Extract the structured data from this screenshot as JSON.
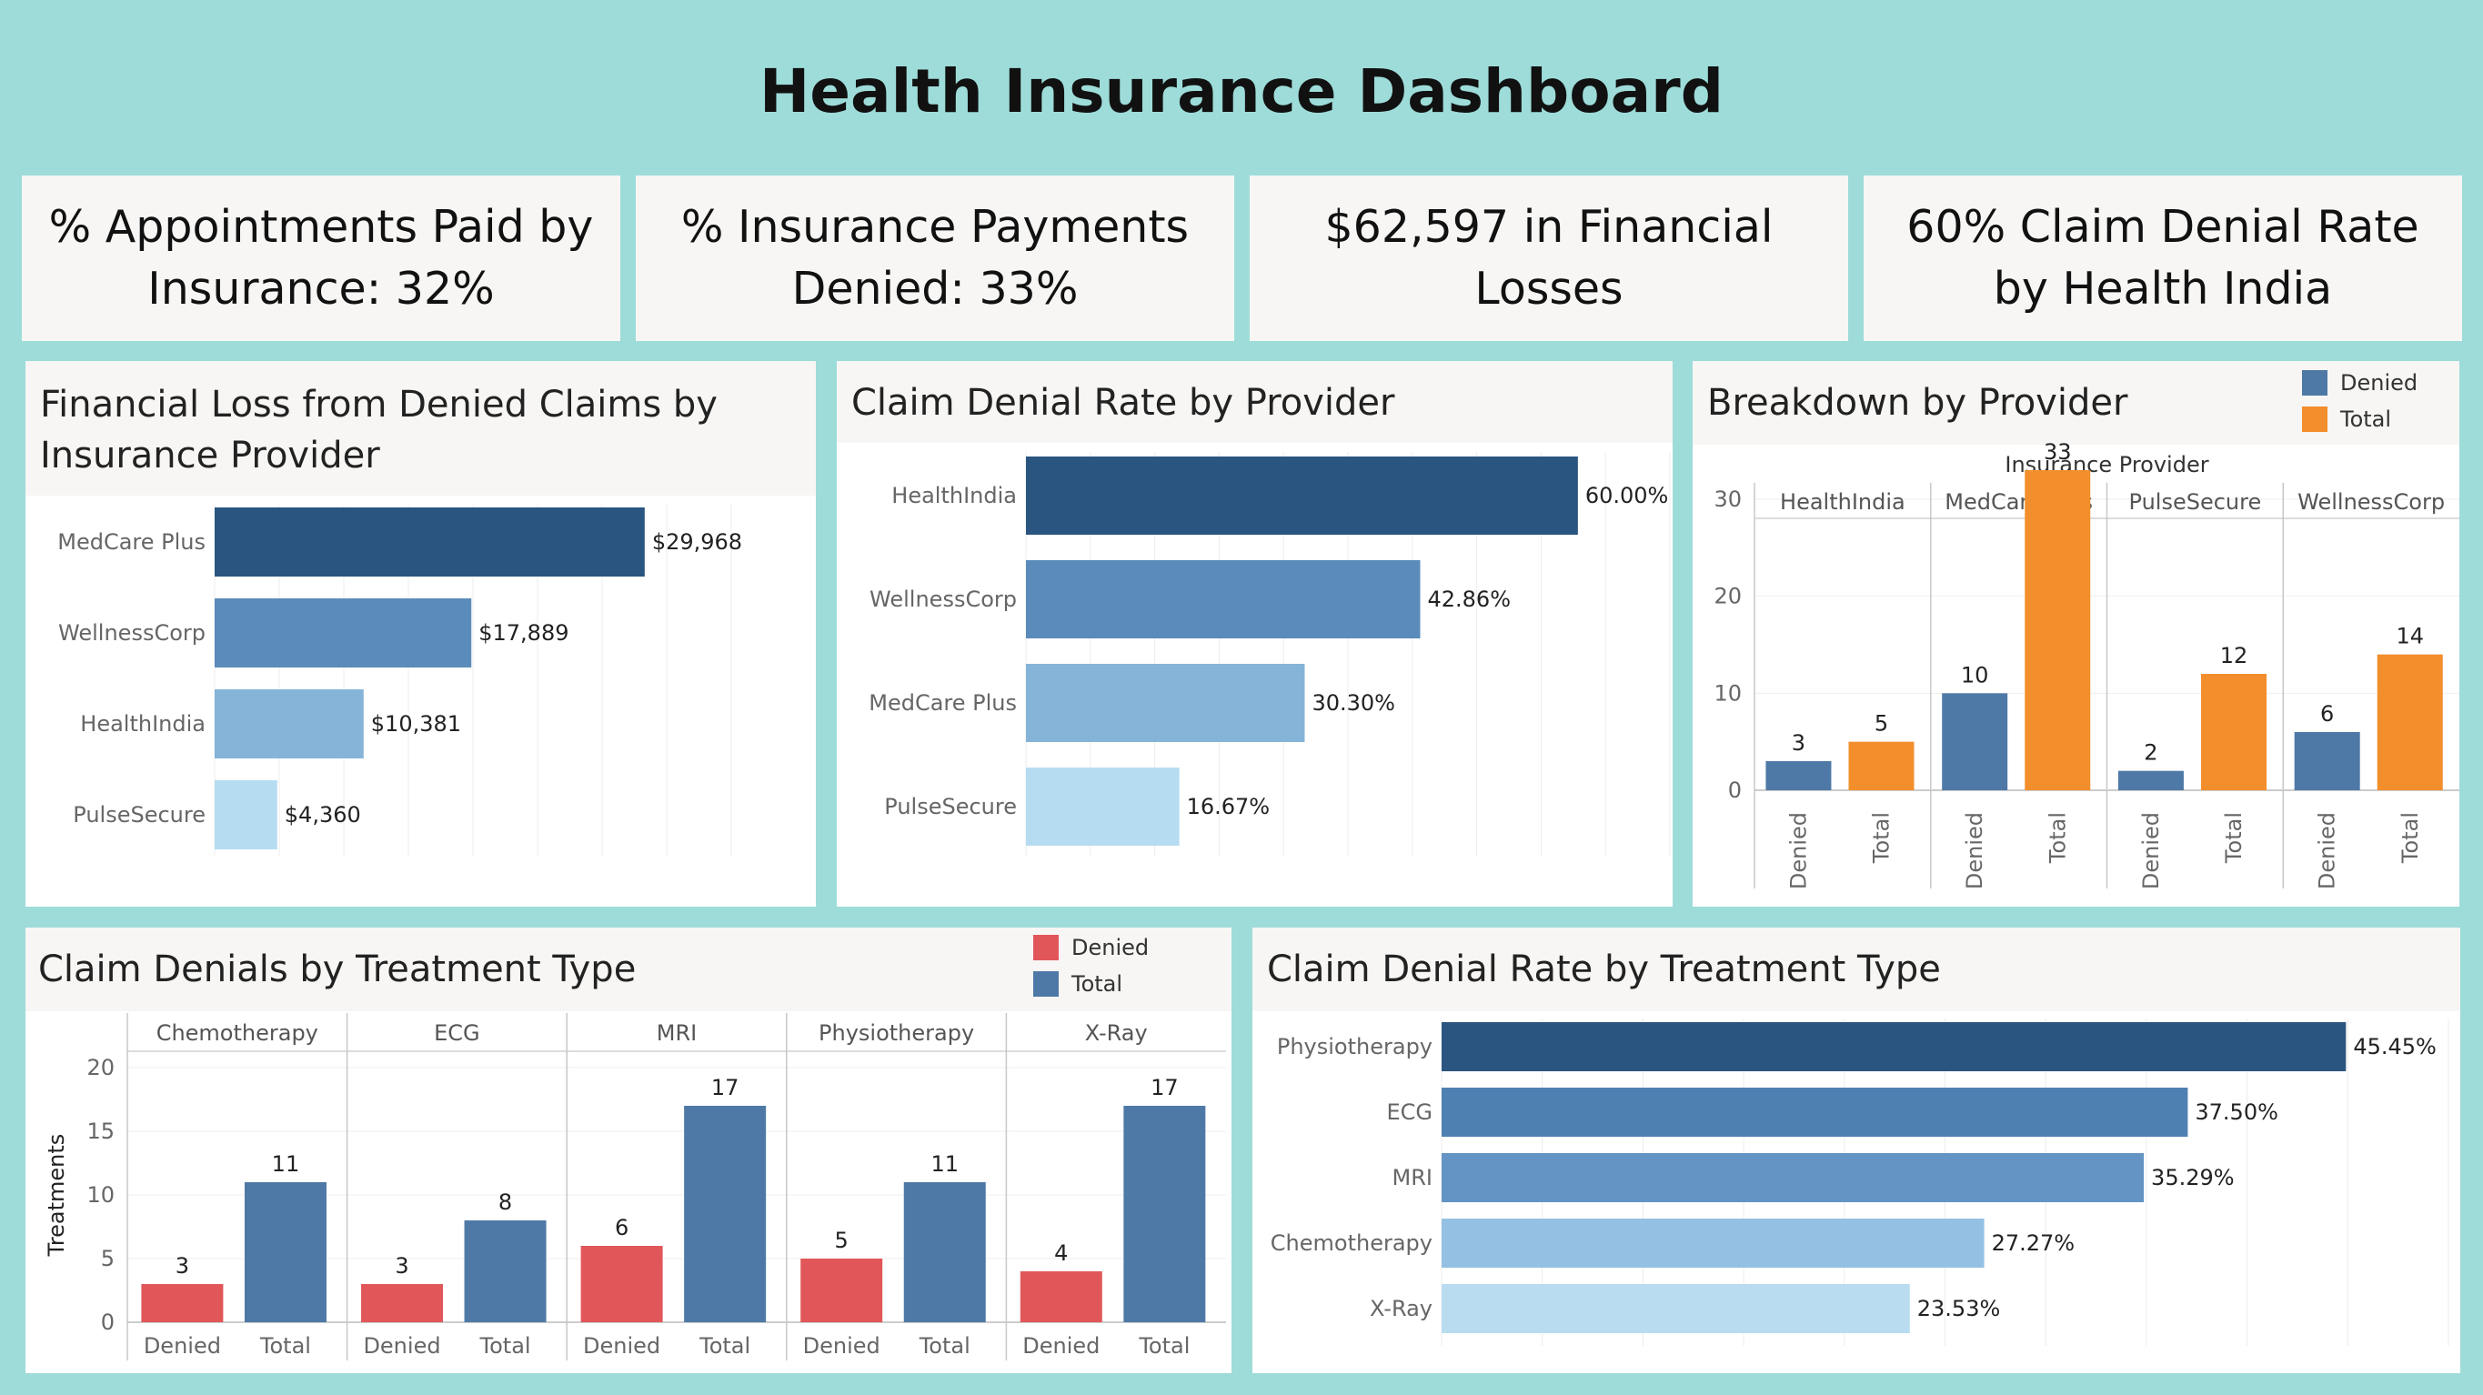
{
  "title": "Health Insurance Dashboard",
  "kpis": [
    {
      "text": "% Appointments Paid by Insurance: 32%"
    },
    {
      "text": "% Insurance Payments Denied: 33%"
    },
    {
      "text": "$62,597 in Financial Losses"
    },
    {
      "text": "60% Claim Denial Rate by Health India"
    }
  ],
  "colors": {
    "background": "#9ddcd9",
    "card": "#f7f6f4",
    "blue_dark": "#2a5580",
    "blue_mid": "#5b8bba",
    "blue_light": "#85b4d8",
    "blue_pale": "#b6dcf1",
    "denied_blue": "#4e79a7",
    "total_orange": "#f28e2b",
    "denied_red": "#e15759",
    "total_blue": "#4e79a7"
  },
  "chart_data": [
    {
      "id": "financial_loss",
      "type": "bar",
      "orientation": "horizontal",
      "title": "Financial Loss from Denied Claims by Insurance Provider",
      "categories": [
        "MedCare Plus",
        "WellnessCorp",
        "HealthIndia",
        "PulseSecure"
      ],
      "values": [
        29968,
        17889,
        10381,
        4360
      ],
      "labels": [
        "$29,968",
        "$17,889",
        "$10,381",
        "$4,360"
      ],
      "colors": [
        "#2a5580",
        "#5b8bba",
        "#85b4d8",
        "#b6dcf1"
      ],
      "xlim": [
        0,
        36000
      ]
    },
    {
      "id": "denial_rate_provider",
      "type": "bar",
      "orientation": "horizontal",
      "title": "Claim Denial Rate by Provider",
      "categories": [
        "HealthIndia",
        "WellnessCorp",
        "MedCare Plus",
        "PulseSecure"
      ],
      "values": [
        60.0,
        42.86,
        30.3,
        16.67
      ],
      "labels": [
        "60.00%",
        "42.86%",
        "30.30%",
        "16.67%"
      ],
      "colors": [
        "#2a5580",
        "#5b8bba",
        "#85b4d8",
        "#b6dcf1"
      ],
      "xlim": [
        0,
        70
      ]
    },
    {
      "id": "breakdown_provider",
      "type": "bar",
      "title": "Breakdown by Provider",
      "group_header": "Insurance Provider",
      "groups": [
        "HealthIndia",
        "MedCare Plus",
        "PulseSecure",
        "WellnessCorp"
      ],
      "bar_labels": [
        "Denied",
        "Total"
      ],
      "series": [
        {
          "name": "Denied",
          "values": [
            3,
            10,
            2,
            6
          ],
          "color": "#4e79a7"
        },
        {
          "name": "Total",
          "values": [
            5,
            33,
            12,
            14
          ],
          "color": "#f28e2b"
        }
      ],
      "yticks": [
        0,
        10,
        20,
        30
      ],
      "ylim": [
        0,
        36
      ],
      "legend": "top-right"
    },
    {
      "id": "denials_treatment",
      "type": "bar",
      "title": "Claim Denials by Treatment Type",
      "ylabel": "Treatments",
      "groups": [
        "Chemotherapy",
        "ECG",
        "MRI",
        "Physiotherapy",
        "X-Ray"
      ],
      "bar_labels": [
        "Denied",
        "Total"
      ],
      "series": [
        {
          "name": "Denied",
          "values": [
            3,
            3,
            6,
            5,
            4
          ],
          "color": "#e15759"
        },
        {
          "name": "Total",
          "values": [
            11,
            8,
            17,
            11,
            17
          ],
          "color": "#4e79a7"
        }
      ],
      "yticks": [
        0,
        5,
        10,
        15,
        20
      ],
      "ylim": [
        0,
        20
      ],
      "legend": "top-right"
    },
    {
      "id": "denial_rate_treatment",
      "type": "bar",
      "orientation": "horizontal",
      "title": "Claim Denial Rate by Treatment Type",
      "categories": [
        "Physiotherapy",
        "ECG",
        "MRI",
        "Chemotherapy",
        "X-Ray"
      ],
      "values": [
        45.45,
        37.5,
        35.29,
        27.27,
        23.53
      ],
      "labels": [
        "45.45%",
        "37.50%",
        "35.29%",
        "27.27%",
        "23.53%"
      ],
      "colors": [
        "#2a5580",
        "#4f80b2",
        "#6394c4",
        "#94c1e3",
        "#b9dcf1"
      ],
      "xlim": [
        0,
        50.6
      ]
    }
  ]
}
